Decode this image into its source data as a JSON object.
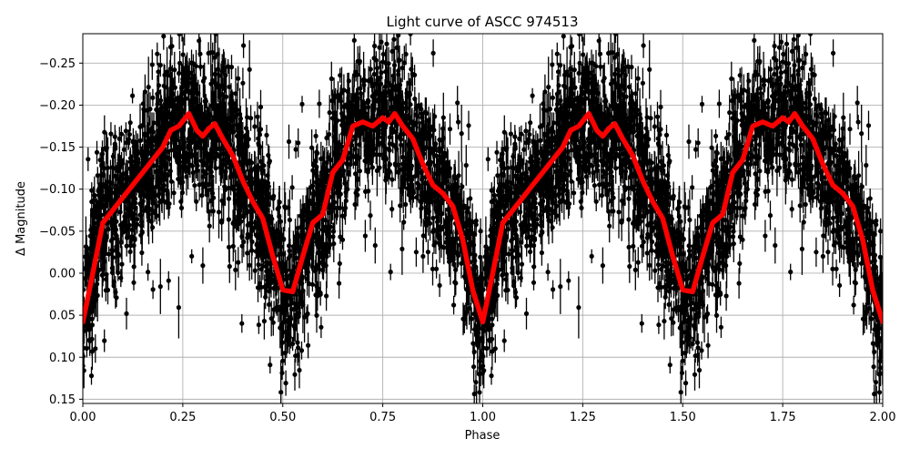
{
  "chart_data": {
    "type": "scatter",
    "title": "Light curve of ASCC 974513",
    "xlabel": "Phase",
    "ylabel": "Δ Magnitude",
    "xlim": [
      0.0,
      2.0
    ],
    "ylim": [
      0.155,
      -0.285
    ],
    "y_inverted": true,
    "grid": true,
    "legend": null,
    "x_ticks": [
      "0.00",
      "0.25",
      "0.50",
      "0.75",
      "1.00",
      "1.25",
      "1.50",
      "1.75",
      "2.00"
    ],
    "x_tick_values": [
      0.0,
      0.25,
      0.5,
      0.75,
      1.0,
      1.25,
      1.5,
      1.75,
      2.0
    ],
    "y_ticks": [
      "−0.25",
      "−0.20",
      "−0.15",
      "−0.10",
      "−0.05",
      "0.00",
      "0.05",
      "0.10",
      "0.15"
    ],
    "y_tick_values": [
      -0.25,
      -0.2,
      -0.15,
      -0.1,
      -0.05,
      0.0,
      0.05,
      0.1,
      0.15
    ],
    "series": [
      {
        "name": "observations",
        "kind": "errorbar-scatter",
        "color": "#000000",
        "description": "Dense black points with vertical error bars, phase-folded and repeated over two cycles; scatter envelope roughly ±0.08 mag around the binned curve"
      },
      {
        "name": "binned mean curve",
        "kind": "line",
        "color": "#ff0000",
        "x": [
          0.0,
          0.025,
          0.05,
          0.075,
          0.1,
          0.125,
          0.15,
          0.175,
          0.2,
          0.22,
          0.24,
          0.265,
          0.285,
          0.3,
          0.315,
          0.33,
          0.35,
          0.375,
          0.4,
          0.425,
          0.45,
          0.475,
          0.5,
          0.525,
          0.55,
          0.575,
          0.6,
          0.625,
          0.65,
          0.675,
          0.7,
          0.725,
          0.75,
          0.765,
          0.78,
          0.8,
          0.825,
          0.85,
          0.875,
          0.9,
          0.925,
          0.95,
          0.975,
          1.0,
          1.025,
          1.05,
          1.075,
          1.1,
          1.125,
          1.15,
          1.175,
          1.2,
          1.22,
          1.24,
          1.265,
          1.285,
          1.3,
          1.315,
          1.33,
          1.35,
          1.375,
          1.4,
          1.425,
          1.45,
          1.475,
          1.5,
          1.525,
          1.55,
          1.575,
          1.6,
          1.625,
          1.65,
          1.675,
          1.7,
          1.725,
          1.75,
          1.765,
          1.78,
          1.8,
          1.825,
          1.85,
          1.875,
          1.9,
          1.925,
          1.95,
          1.975,
          2.0
        ],
        "values": [
          0.058,
          0.0,
          -0.06,
          -0.075,
          -0.09,
          -0.105,
          -0.12,
          -0.135,
          -0.15,
          -0.17,
          -0.175,
          -0.19,
          -0.17,
          -0.163,
          -0.172,
          -0.178,
          -0.16,
          -0.14,
          -0.11,
          -0.085,
          -0.065,
          -0.02,
          0.02,
          0.022,
          -0.02,
          -0.06,
          -0.07,
          -0.12,
          -0.135,
          -0.175,
          -0.18,
          -0.175,
          -0.185,
          -0.18,
          -0.19,
          -0.175,
          -0.16,
          -0.13,
          -0.105,
          -0.095,
          -0.08,
          -0.04,
          0.02,
          0.058,
          0.0,
          -0.06,
          -0.075,
          -0.09,
          -0.105,
          -0.12,
          -0.135,
          -0.15,
          -0.17,
          -0.175,
          -0.19,
          -0.17,
          -0.163,
          -0.172,
          -0.178,
          -0.16,
          -0.14,
          -0.11,
          -0.085,
          -0.065,
          -0.02,
          0.02,
          0.022,
          -0.02,
          -0.06,
          -0.07,
          -0.12,
          -0.135,
          -0.175,
          -0.18,
          -0.175,
          -0.185,
          -0.18,
          -0.19,
          -0.175,
          -0.16,
          -0.13,
          -0.105,
          -0.095,
          -0.08,
          -0.04,
          0.02,
          0.058
        ]
      }
    ]
  },
  "colors": {
    "curve": "#ff0000",
    "points": "#000000",
    "grid": "#b0b0b0",
    "axes": "#000000",
    "background": "#ffffff"
  }
}
